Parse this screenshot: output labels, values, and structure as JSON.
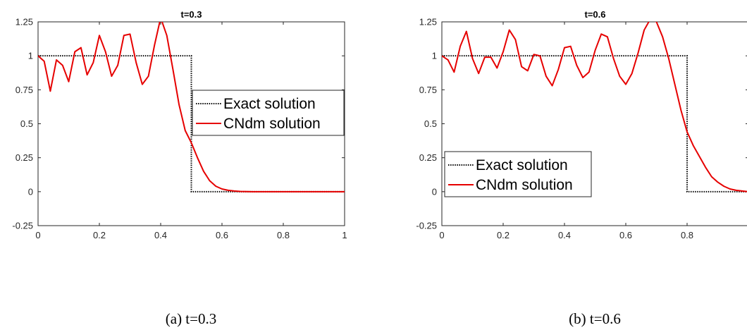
{
  "chart_data": [
    {
      "type": "line",
      "title": "t=0.3",
      "caption": "(a)  t=0.3",
      "xlim": [
        0,
        1
      ],
      "ylim": [
        -0.25,
        1.25
      ],
      "xticks": [
        0,
        0.2,
        0.4,
        0.6,
        0.8,
        1
      ],
      "xtick_labels": [
        "0",
        "0.2",
        "0.4",
        "0.6",
        "0.8",
        "1"
      ],
      "yticks": [
        -0.25,
        0,
        0.25,
        0.5,
        0.75,
        1,
        1.25
      ],
      "ytick_labels": [
        "-0.25",
        "0",
        "0.25",
        "0.5",
        "0.75",
        "1",
        "1.25"
      ],
      "legend_position": "right-middle",
      "series": [
        {
          "name": "Exact solution",
          "style": "dotted",
          "color": "#000000",
          "x": [
            0,
            0.5,
            0.5,
            1
          ],
          "y": [
            1,
            1,
            0,
            0
          ]
        },
        {
          "name": "CNdm solution",
          "style": "solid",
          "color": "#e60000",
          "x": [
            0,
            0.02,
            0.04,
            0.06,
            0.08,
            0.1,
            0.12,
            0.14,
            0.16,
            0.18,
            0.2,
            0.22,
            0.24,
            0.26,
            0.28,
            0.3,
            0.32,
            0.34,
            0.36,
            0.38,
            0.4,
            0.42,
            0.44,
            0.46,
            0.48,
            0.5,
            0.52,
            0.54,
            0.56,
            0.58,
            0.6,
            0.62,
            0.64,
            0.66,
            0.7,
            0.8,
            0.9,
            1
          ],
          "y": [
            1,
            0.96,
            0.74,
            0.97,
            0.93,
            0.81,
            1.03,
            1.06,
            0.86,
            0.95,
            1.15,
            1.03,
            0.85,
            0.93,
            1.15,
            1.16,
            0.95,
            0.79,
            0.85,
            1.08,
            1.28,
            1.15,
            0.9,
            0.64,
            0.45,
            0.36,
            0.25,
            0.15,
            0.08,
            0.04,
            0.02,
            0.01,
            0.005,
            0.002,
            0,
            0,
            0,
            0
          ]
        }
      ]
    },
    {
      "type": "line",
      "title": "t=0.6",
      "caption": "(b)  t=0.6",
      "xlim": [
        0,
        1
      ],
      "ylim": [
        -0.25,
        1.25
      ],
      "xticks": [
        0,
        0.2,
        0.4,
        0.6,
        0.8
      ],
      "xtick_labels": [
        "0",
        "0.2",
        "0.4",
        "0.6",
        "0.8"
      ],
      "yticks": [
        -0.25,
        0,
        0.25,
        0.5,
        0.75,
        1,
        1.25
      ],
      "ytick_labels": [
        "-0.25",
        "0",
        "0.25",
        "0.5",
        "0.75",
        "1",
        "1.25"
      ],
      "legend_position": "left-middle",
      "series": [
        {
          "name": "Exact solution",
          "style": "dotted",
          "color": "#000000",
          "x": [
            0,
            0.8,
            0.8,
            1
          ],
          "y": [
            1,
            1,
            0,
            0
          ]
        },
        {
          "name": "CNdm solution",
          "style": "solid",
          "color": "#e60000",
          "x": [
            0,
            0.02,
            0.04,
            0.06,
            0.08,
            0.1,
            0.12,
            0.14,
            0.16,
            0.18,
            0.2,
            0.22,
            0.24,
            0.26,
            0.28,
            0.3,
            0.32,
            0.34,
            0.36,
            0.38,
            0.4,
            0.42,
            0.44,
            0.46,
            0.48,
            0.5,
            0.52,
            0.54,
            0.56,
            0.58,
            0.6,
            0.62,
            0.64,
            0.66,
            0.68,
            0.7,
            0.72,
            0.74,
            0.76,
            0.78,
            0.8,
            0.82,
            0.84,
            0.86,
            0.88,
            0.9,
            0.92,
            0.94,
            0.96,
            0.98,
            1
          ],
          "y": [
            1,
            0.97,
            0.88,
            1.07,
            1.18,
            0.98,
            0.87,
            0.99,
            0.99,
            0.91,
            1.03,
            1.19,
            1.12,
            0.92,
            0.89,
            1.01,
            1.0,
            0.85,
            0.78,
            0.9,
            1.06,
            1.07,
            0.93,
            0.84,
            0.88,
            1.04,
            1.16,
            1.14,
            0.98,
            0.85,
            0.79,
            0.87,
            1.02,
            1.19,
            1.27,
            1.25,
            1.14,
            0.98,
            0.79,
            0.6,
            0.44,
            0.34,
            0.26,
            0.18,
            0.11,
            0.07,
            0.04,
            0.02,
            0.01,
            0.005,
            0
          ]
        }
      ]
    }
  ]
}
